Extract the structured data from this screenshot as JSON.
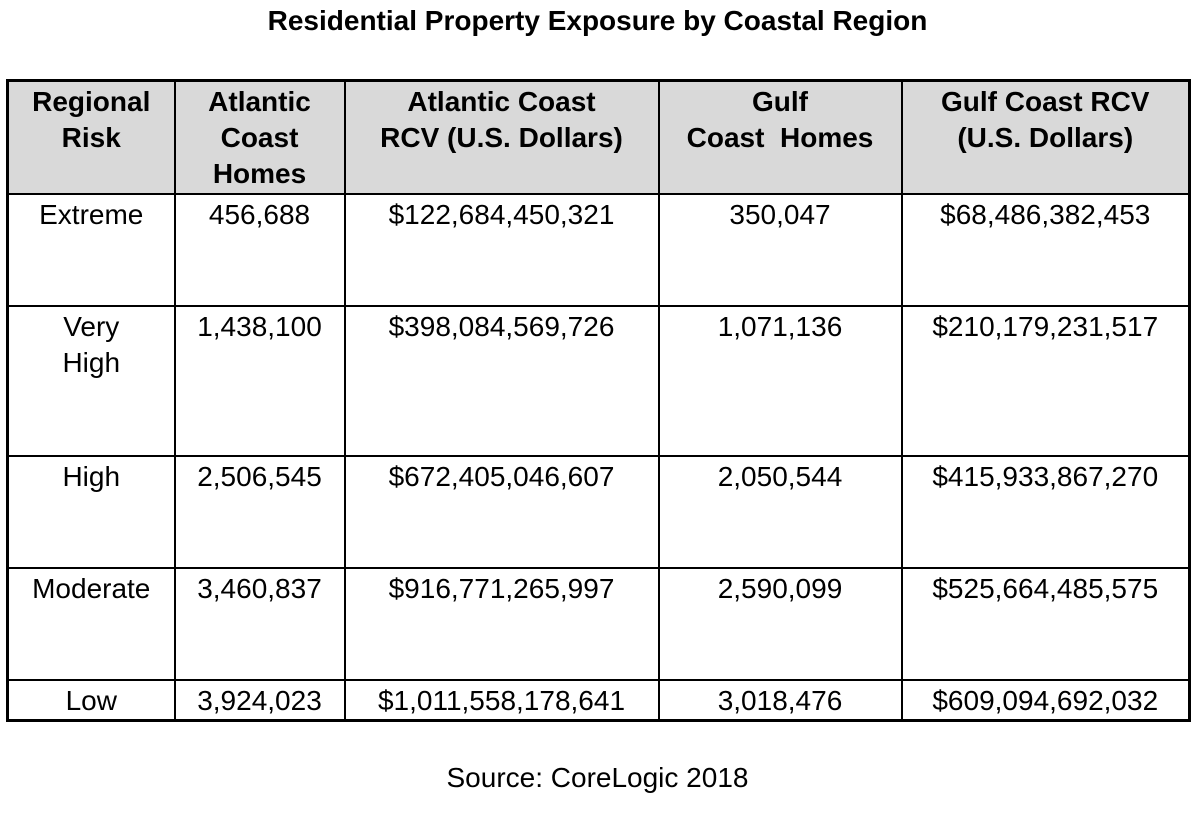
{
  "chart_data": {
    "type": "table",
    "title": "Residential Property Exposure by Coastal Region",
    "columns": [
      [
        "Regional",
        "Risk"
      ],
      [
        "Atlantic",
        "Coast",
        "Homes"
      ],
      [
        "Atlantic Coast",
        "RCV (U.S. Dollars)"
      ],
      [
        "Gulf",
        "Coast  Homes"
      ],
      [
        "Gulf Coast RCV",
        "(U.S. Dollars)"
      ]
    ],
    "rows": [
      {
        "risk": [
          "Extreme"
        ],
        "atlantic_homes": "456,688",
        "atlantic_rcv": "$122,684,450,321",
        "gulf_homes": "350,047",
        "gulf_rcv": "$68,486,382,453"
      },
      {
        "risk": [
          "Very",
          "High"
        ],
        "atlantic_homes": "1,438,100",
        "atlantic_rcv": "$398,084,569,726",
        "gulf_homes": "1,071,136",
        "gulf_rcv": "$210,179,231,517"
      },
      {
        "risk": [
          "High"
        ],
        "atlantic_homes": "2,506,545",
        "atlantic_rcv": "$672,405,046,607",
        "gulf_homes": "2,050,544",
        "gulf_rcv": "$415,933,867,270"
      },
      {
        "risk": [
          "Moderate"
        ],
        "atlantic_homes": "3,460,837",
        "atlantic_rcv": "$916,771,265,997",
        "gulf_homes": "2,590,099",
        "gulf_rcv": "$525,664,485,575"
      },
      {
        "risk": [
          "Low"
        ],
        "atlantic_homes": "3,924,023",
        "atlantic_rcv": "$1,011,558,178,641",
        "gulf_homes": "3,018,476",
        "gulf_rcv": "$609,094,692,032"
      }
    ],
    "source": "Source: CoreLogic 2018"
  }
}
